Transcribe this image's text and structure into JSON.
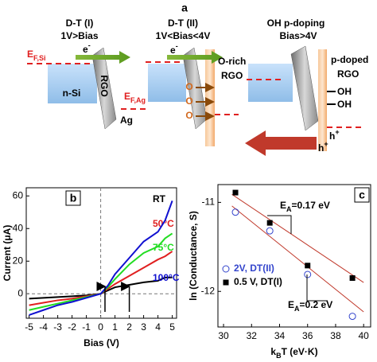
{
  "diagram": {
    "label": "a",
    "col1_title": "D-T (I)",
    "col1_subtitle": "1V>Bias",
    "col2_title": "D-T (II)",
    "col2_subtitle": "1V<Bias<4V",
    "col3_title": "OH p-doping",
    "col3_subtitle": "Bias>4V",
    "ef_si": {
      "main": "E",
      "sub": "F,Si"
    },
    "ef_ag": {
      "main": "E",
      "sub": "F,Ag"
    },
    "electron_1": {
      "main": "e",
      "sup": "-"
    },
    "electron_2": {
      "main": "e",
      "sup": "-"
    },
    "rgo_1": "RGO",
    "nsi": "n-Si",
    "ag": "Ag",
    "o_rich": "O-rich",
    "rgo_2": "RGO",
    "oxygens": [
      "O",
      "O",
      "O"
    ],
    "p_doped": "p-doped",
    "rgo_3": "RGO",
    "oh": [
      "OH",
      "OH"
    ],
    "holes": [
      {
        "main": "h",
        "sup": "+"
      },
      {
        "main": "h",
        "sup": "+"
      }
    ]
  },
  "chart_data": [
    {
      "type": "line",
      "label": "b",
      "xlabel": "Bias (V)",
      "ylabel": "Current (μA)",
      "x": [
        -5,
        -4,
        -3,
        -2,
        -1,
        0,
        0.5,
        1,
        2,
        3,
        4,
        4.5,
        5
      ],
      "series": [
        {
          "name": "RT",
          "color": "#000000",
          "values": [
            -3,
            -2.5,
            -2,
            -1.5,
            -1,
            0,
            2,
            4,
            5.5,
            7,
            8,
            10,
            10
          ]
        },
        {
          "name": "50°C",
          "color": "#e02020",
          "values": [
            -7,
            -5.5,
            -4,
            -3,
            -1.5,
            0,
            3,
            6,
            11,
            16,
            21,
            23,
            26
          ]
        },
        {
          "name": "75°C",
          "color": "#22dd22",
          "values": [
            -10,
            -8,
            -6,
            -4,
            -2,
            0,
            4,
            9,
            18,
            25,
            29,
            34,
            37
          ]
        },
        {
          "name": "100°C",
          "color": "#1010d0",
          "values": [
            -13,
            -10,
            -7,
            -5,
            -2.5,
            0,
            5,
            12,
            22,
            32,
            38,
            45,
            57
          ]
        }
      ],
      "xlim": [
        -5.2,
        5.3
      ],
      "ylim": [
        -15,
        65
      ],
      "xticks": [
        -5,
        -4,
        -3,
        -2,
        -1,
        0,
        1,
        2,
        3,
        4,
        5
      ],
      "yticks": [
        0,
        20,
        40,
        60
      ],
      "reference_lines": {
        "x": 0,
        "y": 0
      },
      "arrows_x": [
        0.3,
        2
      ]
    },
    {
      "type": "scatter",
      "label": "c",
      "xlabel": {
        "main": "k",
        "sub": "B",
        "rest": "T (eV·K)"
      },
      "ylabel": "ln (Conductance, S)",
      "series": [
        {
          "name": "2V, DT(II)",
          "color": "#3344cc",
          "marker": "open-circle",
          "x": [
            30.85,
            33.3,
            36,
            39.2
          ],
          "values": [
            -11.11,
            -11.32,
            -11.81,
            -12.28
          ]
        },
        {
          "name": "0.5 V, DT(I)",
          "color": "#000000",
          "marker": "square",
          "x": [
            30.85,
            33.3,
            36,
            39.2
          ],
          "values": [
            -10.89,
            -11.23,
            -11.71,
            -11.85
          ]
        }
      ],
      "fits": [
        {
          "color": "#c0392b",
          "x": [
            30.6,
            40
          ],
          "values": [
            -11.04,
            -12.23
          ]
        },
        {
          "color": "#c0392b",
          "x": [
            30.6,
            40
          ],
          "values": [
            -10.91,
            -11.9
          ]
        }
      ],
      "annotations": [
        {
          "main": "E",
          "sub": "A",
          "rest": "=0.17 eV"
        },
        {
          "main": "E",
          "sub": "A",
          "rest": "=0.2 eV"
        }
      ],
      "xlim": [
        29.6,
        40.5
      ],
      "ylim": [
        -12.4,
        -10.8
      ],
      "xticks": [
        30,
        32,
        34,
        36,
        38,
        40
      ],
      "yticks": [
        -11,
        -12
      ]
    }
  ]
}
